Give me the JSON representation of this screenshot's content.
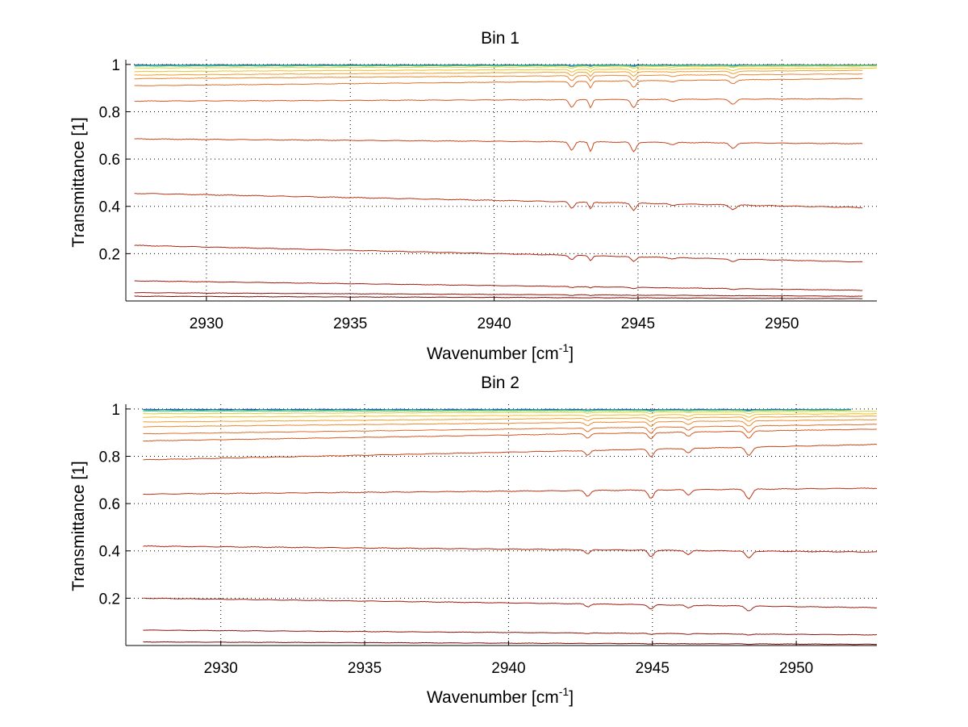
{
  "chart_data": [
    {
      "type": "line",
      "title": "Bin 1",
      "xlabel": "Wavenumber [cm",
      "xlabel_sup": "-1",
      "xlabel_close": "]",
      "ylabel": "Transmittance [1]",
      "xlim": [
        2927.2,
        2953.3
      ],
      "ylim": [
        0.0,
        1.02
      ],
      "xticks": [
        2930,
        2935,
        2940,
        2945,
        2950
      ],
      "xtick_labels": [
        "2930",
        "2935",
        "2940",
        "2945",
        "2950"
      ],
      "yticks": [
        0.2,
        0.4,
        0.6,
        0.8,
        1
      ],
      "ytick_labels": [
        "0.2",
        "0.4",
        "0.6",
        "0.8",
        "1"
      ],
      "grid": true,
      "x_range": [
        2927.5,
        2952.8
      ],
      "dips": [
        {
          "x": 2942.7,
          "depth": 0.045,
          "width": 0.12
        },
        {
          "x": 2943.35,
          "depth": 0.05,
          "width": 0.08
        },
        {
          "x": 2944.85,
          "depth": 0.05,
          "width": 0.12
        },
        {
          "x": 2946.2,
          "depth": 0.012,
          "width": 0.15
        },
        {
          "x": 2948.3,
          "depth": 0.03,
          "width": 0.15
        }
      ],
      "series": [
        {
          "color": "#0a3ea8",
          "start": 0.998,
          "end": 0.998,
          "dip_scale": 0.05,
          "x_end": 2953.3
        },
        {
          "color": "#1aa8c8",
          "start": 0.996,
          "end": 0.997,
          "dip_scale": 0.08,
          "x_end": 2953.3
        },
        {
          "color": "#5fc460",
          "start": 0.993,
          "end": 0.996,
          "dip_scale": 0.1,
          "x_end": 2953.3
        },
        {
          "color": "#d8d43a",
          "start": 0.985,
          "end": 0.993,
          "dip_scale": 0.15,
          "x_end": 2953.3
        },
        {
          "color": "#f1c130",
          "start": 0.97,
          "end": 0.985,
          "dip_scale": 0.25,
          "x_end": 2953.3
        },
        {
          "color": "#f0a032",
          "start": 0.955,
          "end": 0.975,
          "dip_scale": 0.35
        },
        {
          "color": "#ec8a30",
          "start": 0.94,
          "end": 0.96,
          "dip_scale": 0.45
        },
        {
          "color": "#e0702a",
          "start": 0.91,
          "end": 0.94,
          "dip_scale": 0.55
        },
        {
          "color": "#d45a22",
          "start": 0.845,
          "end": 0.855,
          "dip_scale": 0.7
        },
        {
          "color": "#c8461c",
          "start": 0.685,
          "end": 0.665,
          "dip_scale": 0.8
        },
        {
          "color": "#bc3516",
          "start": 0.455,
          "end": 0.395,
          "dip_scale": 0.6
        },
        {
          "color": "#b02812",
          "start": 0.235,
          "end": 0.165,
          "dip_scale": 0.4
        },
        {
          "color": "#a01e10",
          "start": 0.085,
          "end": 0.045,
          "dip_scale": 0.1
        },
        {
          "color": "#8e160c",
          "start": 0.035,
          "end": 0.02,
          "dip_scale": 0.05
        },
        {
          "color": "#780e08",
          "start": 0.02,
          "end": 0.01,
          "dip_scale": 0.02
        }
      ]
    },
    {
      "type": "line",
      "title": "Bin 2",
      "xlabel": "Wavenumber [cm",
      "xlabel_sup": "-1",
      "xlabel_close": "]",
      "ylabel": "Transmittance [1]",
      "xlim": [
        2926.7,
        2952.8
      ],
      "ylim": [
        0.0,
        1.02
      ],
      "xticks": [
        2930,
        2935,
        2940,
        2945,
        2950
      ],
      "xtick_labels": [
        "2930",
        "2935",
        "2940",
        "2945",
        "2950"
      ],
      "yticks": [
        0.2,
        0.4,
        0.6,
        0.8,
        1
      ],
      "ytick_labels": [
        "0.2",
        "0.4",
        "0.6",
        "0.8",
        "1"
      ],
      "grid": true,
      "x_range": [
        2927.3,
        2952.8
      ],
      "dips": [
        {
          "x": 2942.75,
          "depth": 0.03,
          "width": 0.12
        },
        {
          "x": 2944.95,
          "depth": 0.045,
          "width": 0.13
        },
        {
          "x": 2946.25,
          "depth": 0.028,
          "width": 0.13
        },
        {
          "x": 2948.35,
          "depth": 0.05,
          "width": 0.15
        }
      ],
      "series": [
        {
          "color": "#0a3ea8",
          "start": 0.998,
          "end": 0.998,
          "dip_scale": 0.05,
          "x_end": 2951.9
        },
        {
          "color": "#1aa8c8",
          "start": 0.995,
          "end": 0.997,
          "dip_scale": 0.08,
          "x_end": 2951.9
        },
        {
          "color": "#5fc460",
          "start": 0.99,
          "end": 0.995,
          "dip_scale": 0.1,
          "x_end": 2951.9
        },
        {
          "color": "#d8d43a",
          "start": 0.98,
          "end": 0.99,
          "dip_scale": 0.15
        },
        {
          "color": "#f1c130",
          "start": 0.965,
          "end": 0.98,
          "dip_scale": 0.25
        },
        {
          "color": "#f0a032",
          "start": 0.945,
          "end": 0.97,
          "dip_scale": 0.35
        },
        {
          "color": "#ec8a30",
          "start": 0.925,
          "end": 0.955,
          "dip_scale": 0.45
        },
        {
          "color": "#e0702a",
          "start": 0.895,
          "end": 0.935,
          "dip_scale": 0.55
        },
        {
          "color": "#d45a22",
          "start": 0.865,
          "end": 0.915,
          "dip_scale": 0.6
        },
        {
          "color": "#c8461c",
          "start": 0.785,
          "end": 0.85,
          "dip_scale": 0.7
        },
        {
          "color": "#bc3516",
          "start": 0.64,
          "end": 0.665,
          "dip_scale": 0.8
        },
        {
          "color": "#b02812",
          "start": 0.42,
          "end": 0.395,
          "dip_scale": 0.6
        },
        {
          "color": "#a01e10",
          "start": 0.2,
          "end": 0.16,
          "dip_scale": 0.4
        },
        {
          "color": "#8e160c",
          "start": 0.065,
          "end": 0.045,
          "dip_scale": 0.1
        },
        {
          "color": "#780e08",
          "start": 0.015,
          "end": 0.005,
          "dip_scale": 0.03
        }
      ]
    }
  ]
}
